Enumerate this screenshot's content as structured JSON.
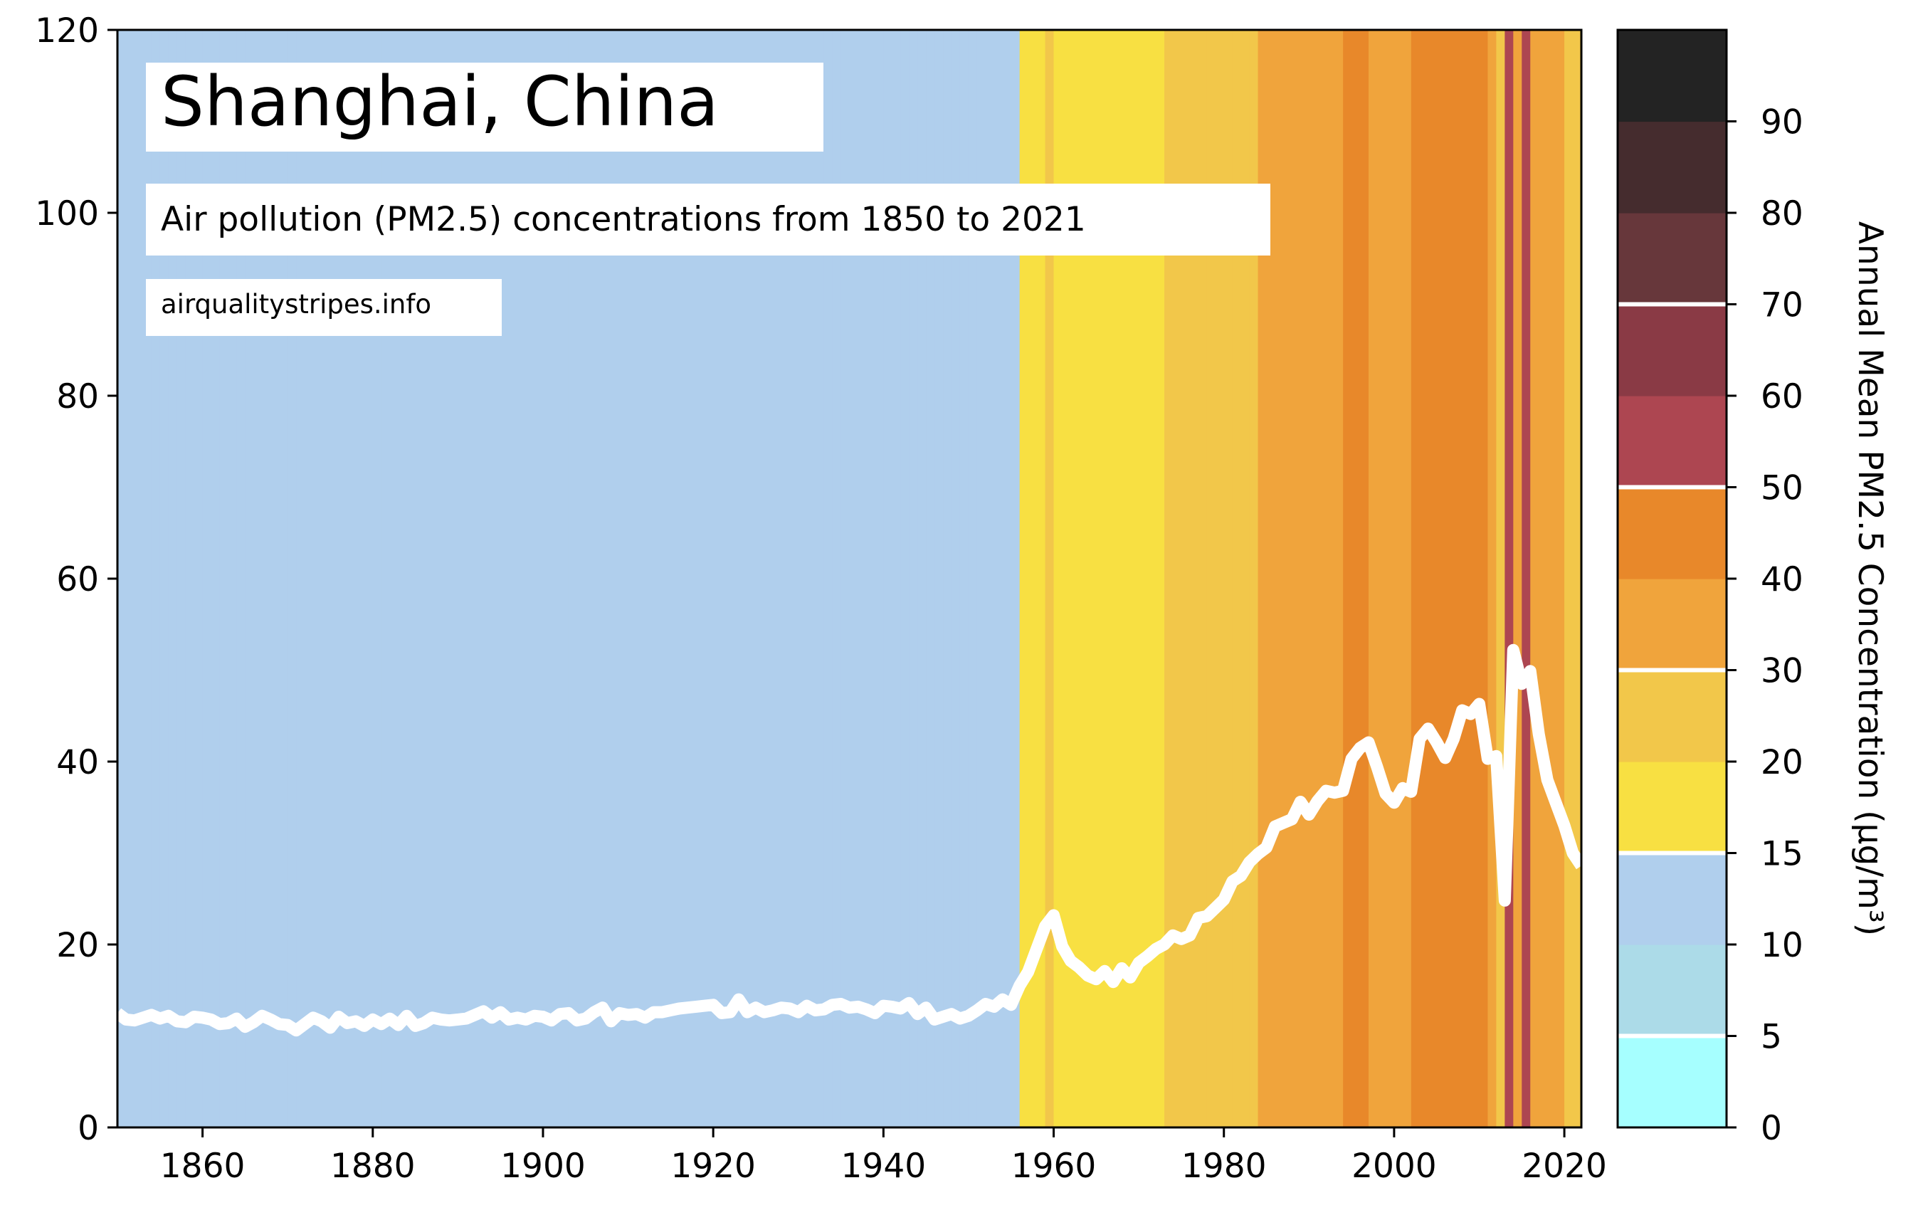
{
  "chart_data": {
    "type": "line",
    "title": "Shanghai, China",
    "subtitle": "Air pollution (PM2.5) concentrations from 1850 to 2021",
    "source": "airqualitystripes.info",
    "xlabel": "",
    "ylabel": "",
    "xlim": [
      1850,
      2022
    ],
    "ylim": [
      0,
      120
    ],
    "x_ticks": [
      1860,
      1880,
      1900,
      1920,
      1940,
      1960,
      1980,
      2000,
      2020
    ],
    "y_ticks": [
      0,
      20,
      40,
      60,
      80,
      100,
      120
    ],
    "grid": false,
    "line_color": "#ffffff",
    "series": [
      {
        "x": [
          1850,
          1851,
          1852,
          1853,
          1854,
          1855,
          1856,
          1857,
          1858,
          1859,
          1860,
          1861,
          1862,
          1863,
          1864,
          1865,
          1866,
          1867,
          1868,
          1869,
          1870,
          1871,
          1872,
          1873,
          1874,
          1875,
          1876,
          1877,
          1878,
          1879,
          1880,
          1881,
          1882,
          1883,
          1884,
          1885,
          1886,
          1887,
          1888,
          1889,
          1890,
          1891,
          1892,
          1893,
          1894,
          1895,
          1896,
          1897,
          1898,
          1899,
          1900,
          1901,
          1902,
          1903,
          1904,
          1905,
          1906,
          1907,
          1908,
          1909,
          1910,
          1911,
          1912,
          1913,
          1914,
          1915,
          1916,
          1917,
          1918,
          1919,
          1920,
          1921,
          1922,
          1923,
          1924,
          1925,
          1926,
          1927,
          1928,
          1929,
          1930,
          1931,
          1932,
          1933,
          1934,
          1935,
          1936,
          1937,
          1938,
          1939,
          1940,
          1941,
          1942,
          1943,
          1944,
          1945,
          1946,
          1947,
          1948,
          1949,
          1950,
          1951,
          1952,
          1953,
          1954,
          1955,
          1956,
          1957,
          1958,
          1959,
          1960,
          1961,
          1962,
          1963,
          1964,
          1965,
          1966,
          1967,
          1968,
          1969,
          1970,
          1971,
          1972,
          1973,
          1974,
          1975,
          1976,
          1977,
          1978,
          1979,
          1980,
          1981,
          1982,
          1983,
          1984,
          1985,
          1986,
          1987,
          1988,
          1989,
          1990,
          1991,
          1992,
          1993,
          1994,
          1995,
          1996,
          1997,
          1998,
          1999,
          2000,
          2001,
          2002,
          2003,
          2004,
          2005,
          2006,
          2007,
          2008,
          2009,
          2010,
          2011,
          2012,
          2013,
          2014,
          2015,
          2016,
          2017,
          2018,
          2019,
          2020,
          2021,
          2022
        ],
        "values": [
          12.5,
          11.8,
          11.7,
          12.0,
          12.3,
          11.9,
          12.2,
          11.6,
          11.5,
          12.1,
          12.0,
          11.8,
          11.3,
          11.4,
          11.9,
          11.0,
          11.5,
          12.2,
          11.8,
          11.3,
          11.2,
          10.6,
          11.3,
          12.0,
          11.6,
          10.9,
          12.1,
          11.4,
          11.6,
          11.1,
          11.8,
          11.3,
          11.9,
          11.2,
          12.2,
          11.1,
          11.4,
          12.0,
          11.8,
          11.7,
          11.8,
          11.9,
          12.3,
          12.7,
          12.0,
          12.6,
          11.8,
          12.0,
          11.8,
          12.2,
          12.1,
          11.7,
          12.4,
          12.5,
          11.7,
          11.9,
          12.6,
          13.1,
          11.6,
          12.5,
          12.3,
          12.4,
          12.0,
          12.6,
          12.6,
          12.8,
          13.0,
          13.1,
          13.2,
          13.3,
          13.4,
          12.5,
          12.6,
          14.0,
          12.6,
          13.1,
          12.6,
          12.8,
          13.1,
          13.0,
          12.6,
          13.3,
          12.8,
          12.9,
          13.4,
          13.5,
          13.1,
          13.2,
          12.9,
          12.5,
          13.3,
          13.2,
          13.0,
          13.6,
          12.4,
          13.1,
          11.8,
          12.1,
          12.4,
          11.9,
          12.2,
          12.8,
          13.5,
          13.2,
          14.0,
          13.4,
          15.5,
          17.0,
          19.5,
          22.0,
          23.2,
          19.8,
          18.2,
          17.5,
          16.6,
          16.2,
          17.1,
          15.9,
          17.4,
          16.4,
          18.0,
          18.7,
          19.5,
          20.0,
          21.0,
          20.6,
          21.0,
          22.9,
          23.1,
          24.0,
          24.9,
          26.9,
          27.5,
          29.0,
          29.9,
          30.6,
          32.9,
          33.3,
          33.7,
          35.6,
          34.2,
          35.7,
          36.8,
          36.6,
          36.8,
          40.3,
          41.5,
          42.1,
          39.4,
          36.5,
          35.5,
          37.1,
          36.7,
          42.5,
          43.6,
          42.1,
          40.4,
          42.5,
          45.6,
          45.2,
          46.3,
          40.3,
          40.6,
          24.8,
          52.2,
          48.5,
          49.9,
          43.0,
          38.0,
          35.5,
          33.0,
          30.0,
          28.6
        ]
      }
    ],
    "stripes": {
      "years": [
        1850,
        1851,
        1852,
        1853,
        1854,
        1855,
        1856,
        1857,
        1858,
        1859,
        1860,
        1861,
        1862,
        1863,
        1864,
        1865,
        1866,
        1867,
        1868,
        1869,
        1870,
        1871,
        1872,
        1873,
        1874,
        1875,
        1876,
        1877,
        1878,
        1879,
        1880,
        1881,
        1882,
        1883,
        1884,
        1885,
        1886,
        1887,
        1888,
        1889,
        1890,
        1891,
        1892,
        1893,
        1894,
        1895,
        1896,
        1897,
        1898,
        1899,
        1900,
        1901,
        1902,
        1903,
        1904,
        1905,
        1906,
        1907,
        1908,
        1909,
        1910,
        1911,
        1912,
        1913,
        1914,
        1915,
        1916,
        1917,
        1918,
        1919,
        1920,
        1921,
        1922,
        1923,
        1924,
        1925,
        1926,
        1927,
        1928,
        1929,
        1930,
        1931,
        1932,
        1933,
        1934,
        1935,
        1936,
        1937,
        1938,
        1939,
        1940,
        1941,
        1942,
        1943,
        1944,
        1945,
        1946,
        1947,
        1948,
        1949,
        1950,
        1951,
        1952,
        1953,
        1954,
        1955,
        1956,
        1957,
        1958,
        1959,
        1960,
        1961,
        1962,
        1963,
        1964,
        1965,
        1966,
        1967,
        1968,
        1969,
        1970,
        1971,
        1972,
        1973,
        1974,
        1975,
        1976,
        1977,
        1978,
        1979,
        1980,
        1981,
        1982,
        1983,
        1984,
        1985,
        1986,
        1987,
        1988,
        1989,
        1990,
        1991,
        1992,
        1993,
        1994,
        1995,
        1996,
        1997,
        1998,
        1999,
        2000,
        2001,
        2002,
        2003,
        2004,
        2005,
        2006,
        2007,
        2008,
        2009,
        2010,
        2011,
        2012,
        2013,
        2014,
        2015,
        2016,
        2017,
        2018,
        2019,
        2020,
        2021
      ],
      "colors": [
        "#b0cfed",
        "#b0cfed",
        "#b0cfed",
        "#b0cfed",
        "#b0cfed",
        "#b0cfed",
        "#b0cfed",
        "#b0cfed",
        "#b0cfed",
        "#b0cfed",
        "#b0cfed",
        "#b0cfed",
        "#b0cfed",
        "#b0cfed",
        "#b0cfed",
        "#b0cfed",
        "#b0cfed",
        "#b0cfed",
        "#b0cfed",
        "#b0cfed",
        "#b0cfed",
        "#b0cfed",
        "#b0cfed",
        "#b0cfed",
        "#b0cfed",
        "#b0cfed",
        "#b0cfed",
        "#b0cfed",
        "#b0cfed",
        "#b0cfed",
        "#b0cfed",
        "#b0cfed",
        "#b0cfed",
        "#b0cfed",
        "#b0cfed",
        "#b0cfed",
        "#b0cfed",
        "#b0cfed",
        "#b0cfed",
        "#b0cfed",
        "#b0cfed",
        "#b0cfed",
        "#b0cfed",
        "#b0cfed",
        "#b0cfed",
        "#b0cfed",
        "#b0cfed",
        "#b0cfed",
        "#b0cfed",
        "#b0cfed",
        "#b0cfed",
        "#b0cfed",
        "#b0cfed",
        "#b0cfed",
        "#b0cfed",
        "#b0cfed",
        "#b0cfed",
        "#b0cfed",
        "#b0cfed",
        "#b0cfed",
        "#b0cfed",
        "#b0cfed",
        "#b0cfed",
        "#b0cfed",
        "#b0cfed",
        "#b0cfed",
        "#b0cfed",
        "#b0cfed",
        "#b0cfed",
        "#b0cfed",
        "#b0cfed",
        "#b0cfed",
        "#b0cfed",
        "#b0cfed",
        "#b0cfed",
        "#b0cfed",
        "#b0cfed",
        "#b0cfed",
        "#b0cfed",
        "#b0cfed",
        "#b0cfed",
        "#b0cfed",
        "#b0cfed",
        "#b0cfed",
        "#b0cfed",
        "#b0cfed",
        "#b0cfed",
        "#b0cfed",
        "#b0cfed",
        "#b0cfed",
        "#b0cfed",
        "#b0cfed",
        "#b0cfed",
        "#b0cfed",
        "#b0cfed",
        "#b0cfed",
        "#b0cfed",
        "#b0cfed",
        "#b0cfed",
        "#b0cfed",
        "#b0cfed",
        "#b0cfed",
        "#b0cfed",
        "#b0cfed",
        "#b0cfed",
        "#b0cfed",
        "#f8e042",
        "#f8e042",
        "#f8e042",
        "#f2c74a",
        "#f8e042",
        "#f8e042",
        "#f8e042",
        "#f8e042",
        "#f8e042",
        "#f8e042",
        "#f8e042",
        "#f8e042",
        "#f8e042",
        "#f8e042",
        "#f8e042",
        "#f8e042",
        "#f8e042",
        "#f2c74a",
        "#f2c74a",
        "#f2c74a",
        "#f2c74a",
        "#f2c74a",
        "#f2c74a",
        "#f2c74a",
        "#f2c74a",
        "#f2c74a",
        "#f2c74a",
        "#f2c74a",
        "#f0a43c",
        "#f0a43c",
        "#f0a43c",
        "#f0a43c",
        "#f0a43c",
        "#f0a43c",
        "#f0a43c",
        "#f0a43c",
        "#f0a43c",
        "#f0a43c",
        "#e8882a",
        "#e8882a",
        "#e8882a",
        "#f0a43c",
        "#f0a43c",
        "#f0a43c",
        "#f0a43c",
        "#f0a43c",
        "#e8882a",
        "#e8882a",
        "#e8882a",
        "#e8882a",
        "#e8882a",
        "#e8882a",
        "#e8882a",
        "#e8882a",
        "#e8882a",
        "#f0a43c",
        "#f2c74a",
        "#ad4651",
        "#f0a43c",
        "#ad4651",
        "#f0a43c",
        "#f0a43c",
        "#f0a43c",
        "#f0a43c",
        "#f2c74a",
        "#f2c74a"
      ]
    },
    "colorbar": {
      "label": "Annual Mean PM2.5 Concentration (µg/m³)",
      "ticks": [
        "0",
        "5",
        "10",
        "15",
        "20",
        "30",
        "40",
        "50",
        "60",
        "70",
        "80",
        "90"
      ],
      "colors": [
        "#a6ffff",
        "#acdbe8",
        "#b0cfed",
        "#f8e042",
        "#f2c74a",
        "#f0a43c",
        "#e8882a",
        "#ad4651",
        "#8a3a45",
        "#67373b",
        "#452c2e",
        "#232323"
      ],
      "separator_bins": [
        1,
        3,
        5,
        7,
        9
      ]
    }
  }
}
